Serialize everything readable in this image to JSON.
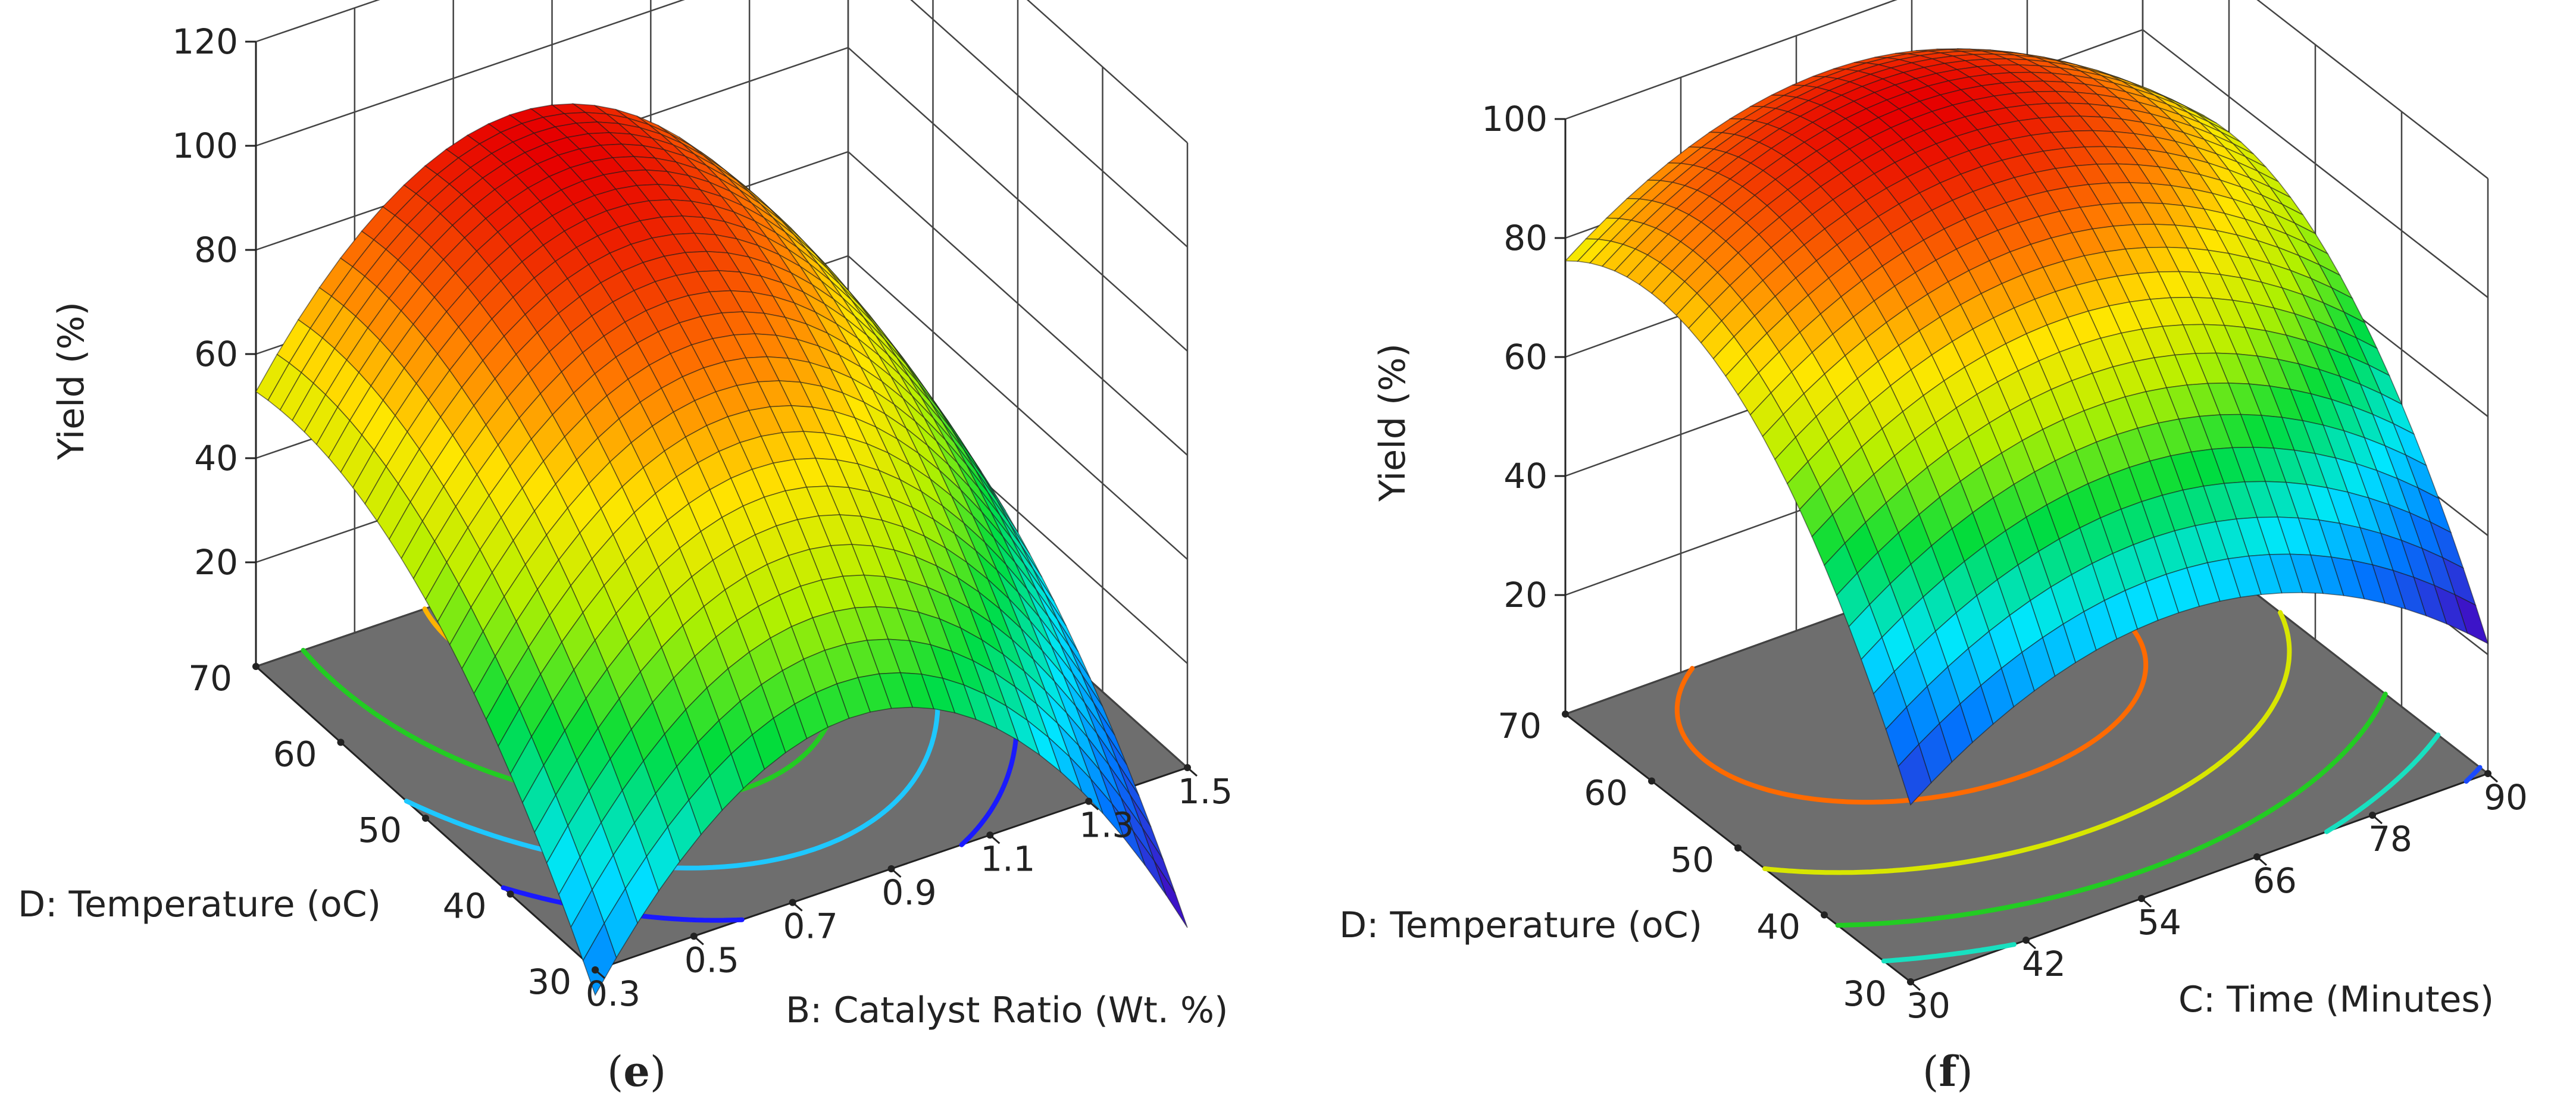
{
  "figure": {
    "panels": [
      "e",
      "f"
    ]
  },
  "chart_data": [
    {
      "type": "surface",
      "panel_label": "e",
      "z_label": "Yield  (%)",
      "x_label": "B: Catalyst Ratio (Wt. %)",
      "y_label": "D: Temperature (oC)",
      "z_ticks": [
        "20",
        "40",
        "60",
        "80",
        "100",
        "120"
      ],
      "x_ticks": [
        "0.3",
        "0.5",
        "0.7",
        "0.9",
        "1.1",
        "1.3",
        "1.5"
      ],
      "y_ticks": [
        "30",
        "40",
        "50",
        "60",
        "70"
      ],
      "x_range": [
        0.3,
        1.5
      ],
      "y_range": [
        30,
        70
      ],
      "z_range": [
        0,
        120
      ],
      "model": {
        "z0": 90,
        "x_opt": 0.82,
        "y_opt": 66,
        "ax": 135,
        "ay": 0.045,
        "axy": 0
      },
      "contour_levels": [
        {
          "value": 100,
          "color": "#ff1a1a"
        },
        {
          "value": 85,
          "color": "#ffb300"
        },
        {
          "value": 65,
          "color": "#22cc22"
        },
        {
          "value": 45,
          "color": "#1ec8ff"
        },
        {
          "value": 25,
          "color": "#1a1aff"
        }
      ]
    },
    {
      "type": "surface",
      "panel_label": "f",
      "z_label": "Yield  (%)",
      "x_label": "C: Time (Minutes)",
      "y_label": "D: Temperature (oC)",
      "z_ticks": [
        "20",
        "40",
        "60",
        "80",
        "100"
      ],
      "x_ticks": [
        "30",
        "42",
        "54",
        "66",
        "78",
        "90"
      ],
      "y_ticks": [
        "30",
        "40",
        "50",
        "60",
        "70"
      ],
      "x_range": [
        30,
        90
      ],
      "y_range": [
        30,
        70
      ],
      "z_range": [
        0,
        100
      ],
      "model": {
        "z0": 98,
        "x_opt": 57,
        "y_opt": 60,
        "ax": 0.022,
        "ay": 0.058,
        "axy": 0
      },
      "contour_levels": [
        {
          "value": 88,
          "color": "#ff6a00"
        },
        {
          "value": 72,
          "color": "#d8e600"
        },
        {
          "value": 55,
          "color": "#22cc22"
        },
        {
          "value": 40,
          "color": "#18e0c0"
        },
        {
          "value": 25,
          "color": "#1a4aff"
        }
      ]
    }
  ]
}
